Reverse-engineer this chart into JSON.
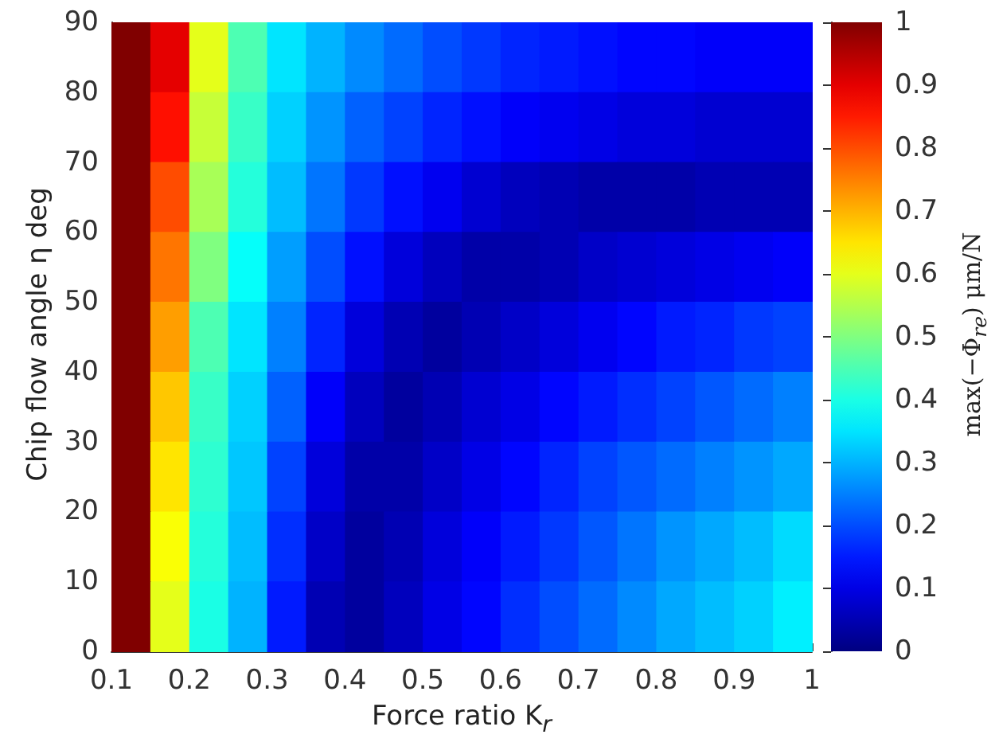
{
  "chart_data": {
    "type": "heatmap",
    "xlabel": "Force ratio K$_{r}$",
    "ylabel": "Chip flow angle η deg",
    "clabel": "max(−Φ$_{re}$)  μm/N",
    "x": [
      0.125,
      0.175,
      0.225,
      0.275,
      0.325,
      0.375,
      0.425,
      0.475,
      0.525,
      0.575,
      0.625,
      0.675,
      0.725,
      0.775,
      0.825,
      0.875,
      0.925,
      0.975
    ],
    "xlim": [
      0.1,
      1
    ],
    "xticks": [
      0.1,
      0.2,
      0.3,
      0.4,
      0.5,
      0.6,
      0.7,
      0.8,
      0.9,
      1
    ],
    "ylim": [
      0,
      90
    ],
    "yticks": [
      0,
      10,
      20,
      30,
      40,
      50,
      60,
      70,
      80,
      90
    ],
    "clim": [
      0,
      1
    ],
    "cticks": [
      0,
      0.1,
      0.2,
      0.3,
      0.4,
      0.5,
      0.6,
      0.7,
      0.8,
      0.9,
      1
    ],
    "cells": [
      [
        1,
        0.9,
        0.6,
        0.45,
        0.35,
        0.3,
        0.26,
        0.23,
        0.2,
        0.18,
        0.16,
        0.15,
        0.14,
        0.13,
        0.13,
        0.12,
        0.12,
        0.12
      ],
      [
        1,
        0.86,
        0.57,
        0.43,
        0.33,
        0.27,
        0.22,
        0.19,
        0.16,
        0.14,
        0.12,
        0.11,
        0.1,
        0.09,
        0.09,
        0.08,
        0.08,
        0.08
      ],
      [
        1,
        0.8,
        0.54,
        0.41,
        0.31,
        0.24,
        0.18,
        0.14,
        0.11,
        0.08,
        0.06,
        0.05,
        0.04,
        0.04,
        0.04,
        0.05,
        0.05,
        0.05
      ],
      [
        1,
        0.76,
        0.5,
        0.38,
        0.28,
        0.2,
        0.14,
        0.09,
        0.06,
        0.04,
        0.04,
        0.05,
        0.07,
        0.08,
        0.09,
        0.1,
        0.11,
        0.12
      ],
      [
        1,
        0.72,
        0.45,
        0.35,
        0.25,
        0.16,
        0.09,
        0.05,
        0.03,
        0.05,
        0.07,
        0.09,
        0.11,
        0.13,
        0.15,
        0.16,
        0.18,
        0.19
      ],
      [
        1,
        0.68,
        0.43,
        0.33,
        0.22,
        0.12,
        0.06,
        0.03,
        0.05,
        0.08,
        0.1,
        0.13,
        0.15,
        0.17,
        0.19,
        0.21,
        0.23,
        0.25
      ],
      [
        1,
        0.65,
        0.42,
        0.32,
        0.19,
        0.09,
        0.04,
        0.04,
        0.07,
        0.1,
        0.13,
        0.16,
        0.19,
        0.21,
        0.23,
        0.25,
        0.27,
        0.29
      ],
      [
        1,
        0.62,
        0.41,
        0.31,
        0.17,
        0.07,
        0.03,
        0.05,
        0.09,
        0.12,
        0.15,
        0.18,
        0.21,
        0.24,
        0.27,
        0.29,
        0.31,
        0.34
      ],
      [
        1,
        0.6,
        0.4,
        0.3,
        0.15,
        0.05,
        0.03,
        0.06,
        0.1,
        0.13,
        0.17,
        0.2,
        0.23,
        0.26,
        0.29,
        0.31,
        0.33,
        0.36
      ]
    ]
  }
}
